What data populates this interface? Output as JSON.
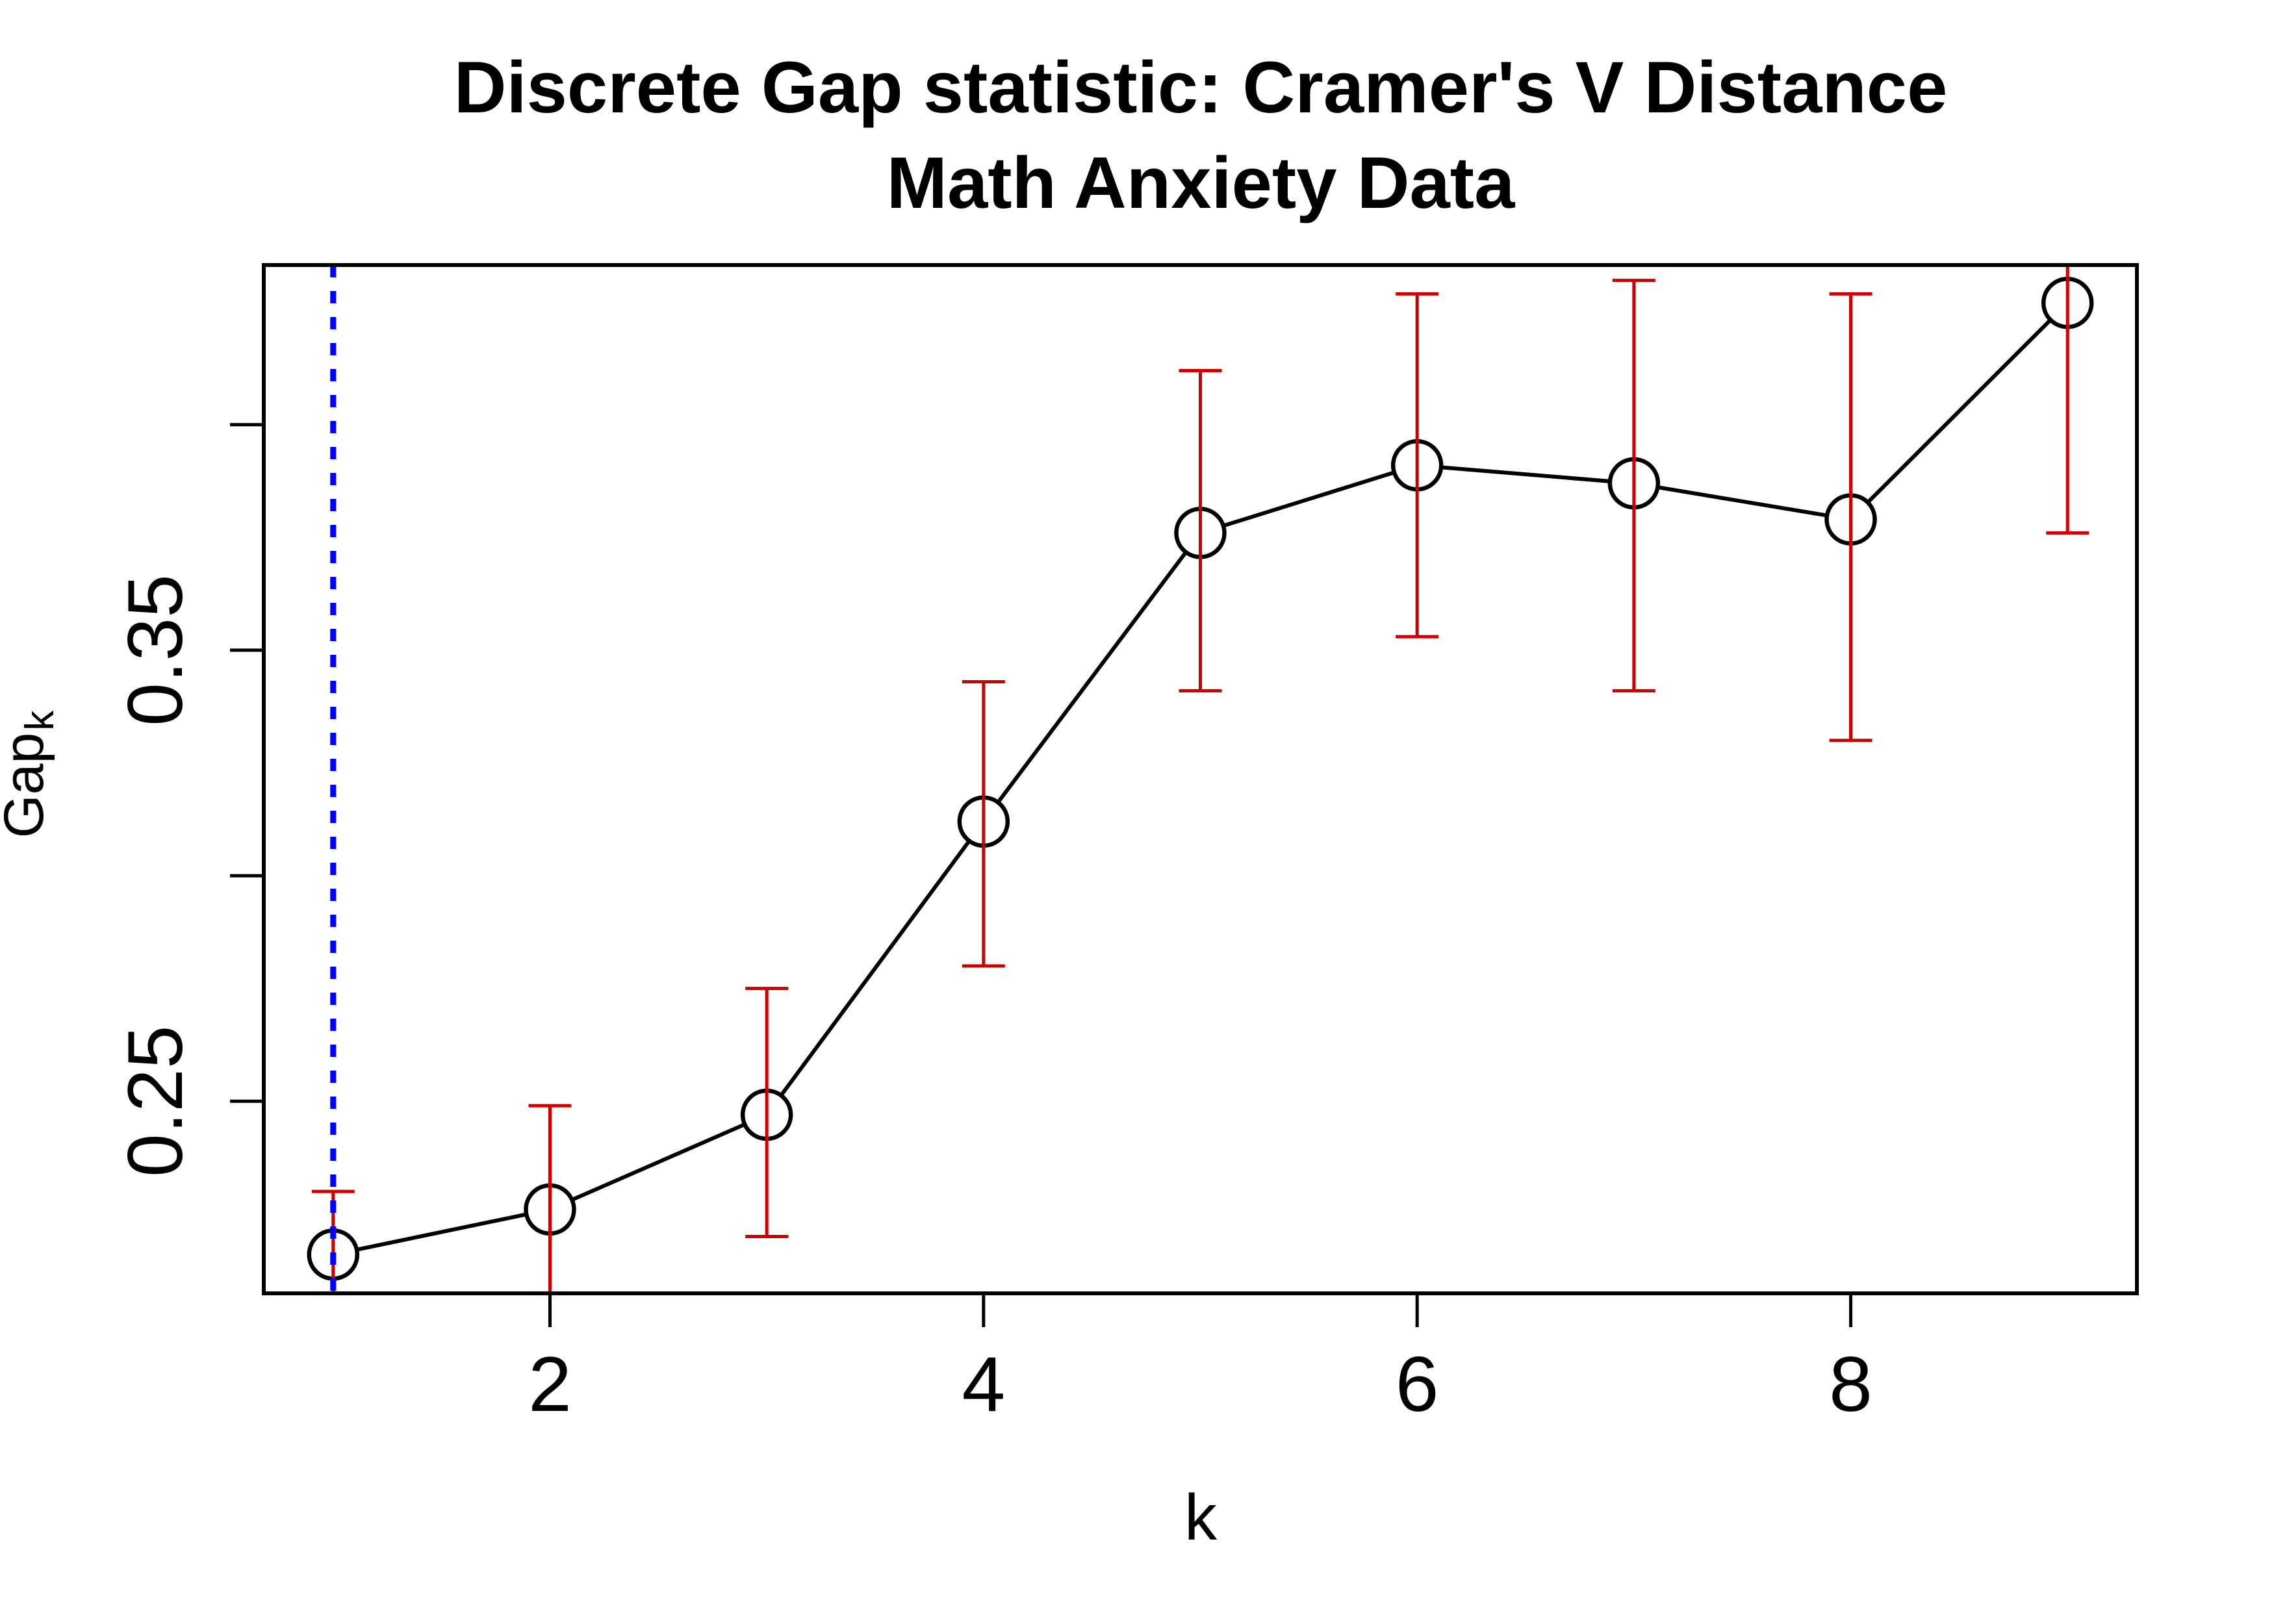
{
  "chart_data": {
    "type": "line",
    "title_line1": "Discrete Gap statistic: Cramer's V Distance",
    "title_line2": "Math Anxiety Data",
    "xlabel": "k",
    "ylabel_main": "Gap",
    "ylabel_sub": "k",
    "x": [
      1,
      2,
      3,
      4,
      5,
      6,
      7,
      8,
      9
    ],
    "gap": [
      0.216,
      0.226,
      0.247,
      0.312,
      0.376,
      0.391,
      0.387,
      0.379,
      0.427
    ],
    "upper": [
      0.23,
      0.249,
      0.275,
      0.343,
      0.412,
      0.429,
      0.432,
      0.429,
      0.478
    ],
    "lower": [
      0.202,
      0.203,
      0.22,
      0.28,
      0.341,
      0.353,
      0.341,
      0.33,
      0.376
    ],
    "x_ticks": [
      2,
      4,
      6,
      8
    ],
    "x_tick_labels": [
      "2",
      "4",
      "6",
      "8"
    ],
    "y_ticks": [
      0.25,
      0.3,
      0.35,
      0.4
    ],
    "y_tick_labels": [
      "0.25",
      "",
      "0.35",
      ""
    ],
    "xlim": [
      0.68,
      9.32
    ],
    "ylim": [
      0.2074,
      0.4354
    ],
    "vline_x": 1,
    "marker": "open-circle",
    "grid": false,
    "legend": "none",
    "colors": {
      "series_line": "#000000",
      "marker_stroke": "#000000",
      "marker_fill": "#FFFFFF",
      "error_bar": "#CC0000",
      "reference_line": "#0000FF",
      "axis": "#000000",
      "background": "#FFFFFF"
    }
  }
}
